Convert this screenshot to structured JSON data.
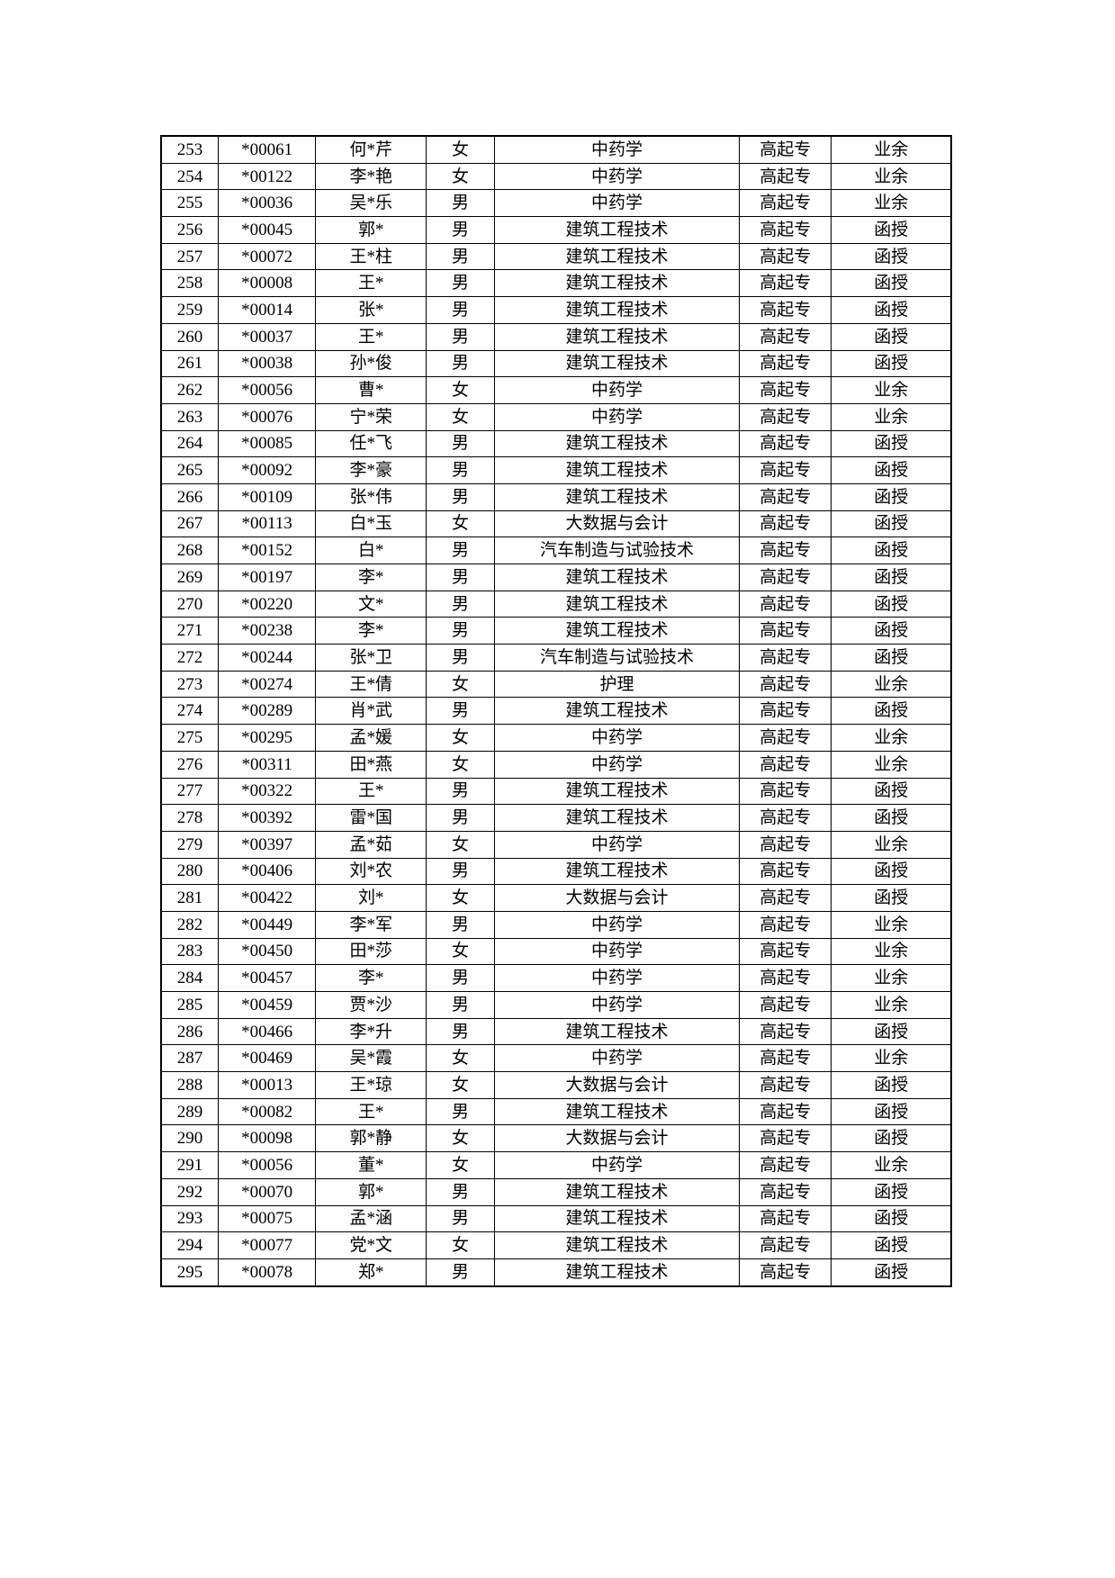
{
  "page": {
    "background_color": "#ffffff",
    "text_color": "#000000",
    "border_color": "#000000"
  },
  "table": {
    "columns": [
      {
        "key": "serial-number"
      },
      {
        "key": "candidate-id"
      },
      {
        "key": "student-name"
      },
      {
        "key": "gender"
      },
      {
        "key": "major"
      },
      {
        "key": "education-level"
      },
      {
        "key": "study-form"
      }
    ],
    "rows": [
      [
        "253",
        "*00061",
        "何*芹",
        "女",
        "中药学",
        "高起专",
        "业余"
      ],
      [
        "254",
        "*00122",
        "李*艳",
        "女",
        "中药学",
        "高起专",
        "业余"
      ],
      [
        "255",
        "*00036",
        "吴*乐",
        "男",
        "中药学",
        "高起专",
        "业余"
      ],
      [
        "256",
        "*00045",
        "郭*",
        "男",
        "建筑工程技术",
        "高起专",
        "函授"
      ],
      [
        "257",
        "*00072",
        "王*柱",
        "男",
        "建筑工程技术",
        "高起专",
        "函授"
      ],
      [
        "258",
        "*00008",
        "王*",
        "男",
        "建筑工程技术",
        "高起专",
        "函授"
      ],
      [
        "259",
        "*00014",
        "张*",
        "男",
        "建筑工程技术",
        "高起专",
        "函授"
      ],
      [
        "260",
        "*00037",
        "王*",
        "男",
        "建筑工程技术",
        "高起专",
        "函授"
      ],
      [
        "261",
        "*00038",
        "孙*俊",
        "男",
        "建筑工程技术",
        "高起专",
        "函授"
      ],
      [
        "262",
        "*00056",
        "曹*",
        "女",
        "中药学",
        "高起专",
        "业余"
      ],
      [
        "263",
        "*00076",
        "宁*荣",
        "女",
        "中药学",
        "高起专",
        "业余"
      ],
      [
        "264",
        "*00085",
        "任*飞",
        "男",
        "建筑工程技术",
        "高起专",
        "函授"
      ],
      [
        "265",
        "*00092",
        "李*豪",
        "男",
        "建筑工程技术",
        "高起专",
        "函授"
      ],
      [
        "266",
        "*00109",
        "张*伟",
        "男",
        "建筑工程技术",
        "高起专",
        "函授"
      ],
      [
        "267",
        "*00113",
        "白*玉",
        "女",
        "大数据与会计",
        "高起专",
        "函授"
      ],
      [
        "268",
        "*00152",
        "白*",
        "男",
        "汽车制造与试验技术",
        "高起专",
        "函授"
      ],
      [
        "269",
        "*00197",
        "李*",
        "男",
        "建筑工程技术",
        "高起专",
        "函授"
      ],
      [
        "270",
        "*00220",
        "文*",
        "男",
        "建筑工程技术",
        "高起专",
        "函授"
      ],
      [
        "271",
        "*00238",
        "李*",
        "男",
        "建筑工程技术",
        "高起专",
        "函授"
      ],
      [
        "272",
        "*00244",
        "张*卫",
        "男",
        "汽车制造与试验技术",
        "高起专",
        "函授"
      ],
      [
        "273",
        "*00274",
        "王*倩",
        "女",
        "护理",
        "高起专",
        "业余"
      ],
      [
        "274",
        "*00289",
        "肖*武",
        "男",
        "建筑工程技术",
        "高起专",
        "函授"
      ],
      [
        "275",
        "*00295",
        "孟*媛",
        "女",
        "中药学",
        "高起专",
        "业余"
      ],
      [
        "276",
        "*00311",
        "田*燕",
        "女",
        "中药学",
        "高起专",
        "业余"
      ],
      [
        "277",
        "*00322",
        "王*",
        "男",
        "建筑工程技术",
        "高起专",
        "函授"
      ],
      [
        "278",
        "*00392",
        "雷*国",
        "男",
        "建筑工程技术",
        "高起专",
        "函授"
      ],
      [
        "279",
        "*00397",
        "孟*茹",
        "女",
        "中药学",
        "高起专",
        "业余"
      ],
      [
        "280",
        "*00406",
        "刘*农",
        "男",
        "建筑工程技术",
        "高起专",
        "函授"
      ],
      [
        "281",
        "*00422",
        "刘*",
        "女",
        "大数据与会计",
        "高起专",
        "函授"
      ],
      [
        "282",
        "*00449",
        "李*军",
        "男",
        "中药学",
        "高起专",
        "业余"
      ],
      [
        "283",
        "*00450",
        "田*莎",
        "女",
        "中药学",
        "高起专",
        "业余"
      ],
      [
        "284",
        "*00457",
        "李*",
        "男",
        "中药学",
        "高起专",
        "业余"
      ],
      [
        "285",
        "*00459",
        "贾*沙",
        "男",
        "中药学",
        "高起专",
        "业余"
      ],
      [
        "286",
        "*00466",
        "李*升",
        "男",
        "建筑工程技术",
        "高起专",
        "函授"
      ],
      [
        "287",
        "*00469",
        "吴*霞",
        "女",
        "中药学",
        "高起专",
        "业余"
      ],
      [
        "288",
        "*00013",
        "王*琼",
        "女",
        "大数据与会计",
        "高起专",
        "函授"
      ],
      [
        "289",
        "*00082",
        "王*",
        "男",
        "建筑工程技术",
        "高起专",
        "函授"
      ],
      [
        "290",
        "*00098",
        "郭*静",
        "女",
        "大数据与会计",
        "高起专",
        "函授"
      ],
      [
        "291",
        "*00056",
        "董*",
        "女",
        "中药学",
        "高起专",
        "业余"
      ],
      [
        "292",
        "*00070",
        "郭*",
        "男",
        "建筑工程技术",
        "高起专",
        "函授"
      ],
      [
        "293",
        "*00075",
        "孟*涵",
        "男",
        "建筑工程技术",
        "高起专",
        "函授"
      ],
      [
        "294",
        "*00077",
        "党*文",
        "女",
        "建筑工程技术",
        "高起专",
        "函授"
      ],
      [
        "295",
        "*00078",
        "郑*",
        "男",
        "建筑工程技术",
        "高起专",
        "函授"
      ]
    ]
  }
}
